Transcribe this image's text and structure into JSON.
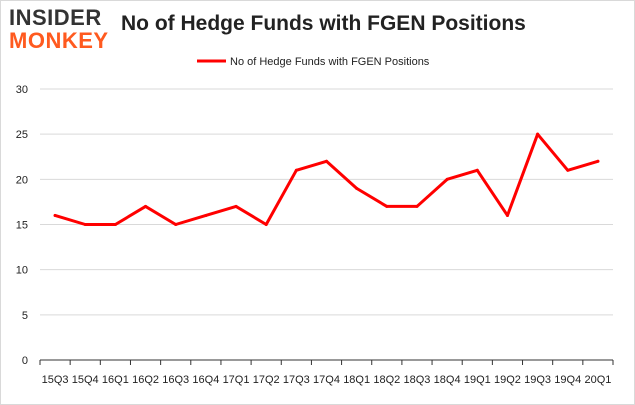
{
  "logo": {
    "line1": "INSIDER",
    "line2": "MONKEY",
    "top_color": "#333333",
    "bottom_color": "#ff5a1f"
  },
  "chart_data": {
    "type": "line",
    "title": "No of Hedge Funds with FGEN Positions",
    "xlabel": "",
    "ylabel": "",
    "categories": [
      "15Q3",
      "15Q4",
      "16Q1",
      "16Q2",
      "16Q3",
      "16Q4",
      "17Q1",
      "17Q2",
      "17Q3",
      "17Q4",
      "18Q1",
      "18Q2",
      "18Q3",
      "18Q4",
      "19Q1",
      "19Q2",
      "19Q3",
      "19Q4",
      "20Q1"
    ],
    "series": [
      {
        "name": "No of Hedge Funds with FGEN Positions",
        "values": [
          16,
          15,
          15,
          17,
          15,
          16,
          17,
          15,
          21,
          22,
          19,
          17,
          17,
          20,
          21,
          16,
          25,
          21,
          22
        ],
        "color": "#ff0000"
      }
    ],
    "ylim": [
      0,
      30
    ],
    "yticks": [
      0,
      5,
      10,
      15,
      20,
      25,
      30
    ],
    "grid": true,
    "legend_position": "top-center"
  }
}
